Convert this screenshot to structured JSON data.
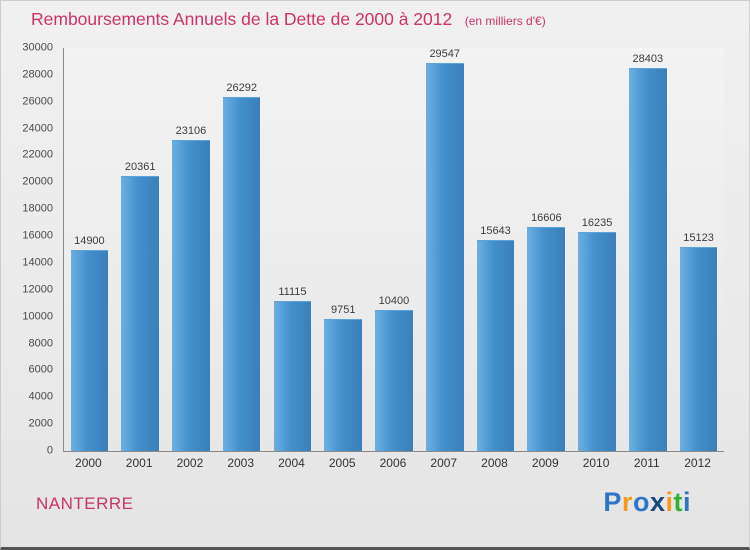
{
  "header": {
    "title": "Remboursements Annuels de la Dette de 2000 à 2012",
    "subtitle": "(en milliers d'€)"
  },
  "chart_data": {
    "type": "bar",
    "title": "Remboursements Annuels de la Dette de 2000 à 2012",
    "subtitle": "(en milliers d'€)",
    "categories": [
      "2000",
      "2001",
      "2002",
      "2003",
      "2004",
      "2005",
      "2006",
      "2007",
      "2008",
      "2009",
      "2010",
      "2011",
      "2012"
    ],
    "values": [
      14900,
      20361,
      23106,
      26292,
      11115,
      9751,
      10400,
      29547,
      15643,
      16606,
      16235,
      28403,
      15123
    ],
    "xlabel": "",
    "ylabel": "",
    "ylim": [
      0,
      30000
    ],
    "ytick_step": 2000,
    "grid": false,
    "legend": "none",
    "colors": {
      "bar": "#4390cc",
      "title": "#cc3366",
      "axis": "#8a8a8a",
      "tick_label": "#4a4a4a",
      "value_label": "#3c3c3c"
    }
  },
  "footer": {
    "city": "NANTERRE",
    "logo": {
      "letters": [
        {
          "ch": "P",
          "color": "#2e74c8"
        },
        {
          "ch": "r",
          "color": "#f59a1f"
        },
        {
          "ch": "o",
          "color": "#2e74c8"
        },
        {
          "ch": "x",
          "color": "#15497e"
        },
        {
          "ch": "i",
          "color": "#f59a1f"
        },
        {
          "ch": "t",
          "color": "#2eb335"
        },
        {
          "ch": "i",
          "color": "#2e74c8"
        }
      ]
    }
  }
}
